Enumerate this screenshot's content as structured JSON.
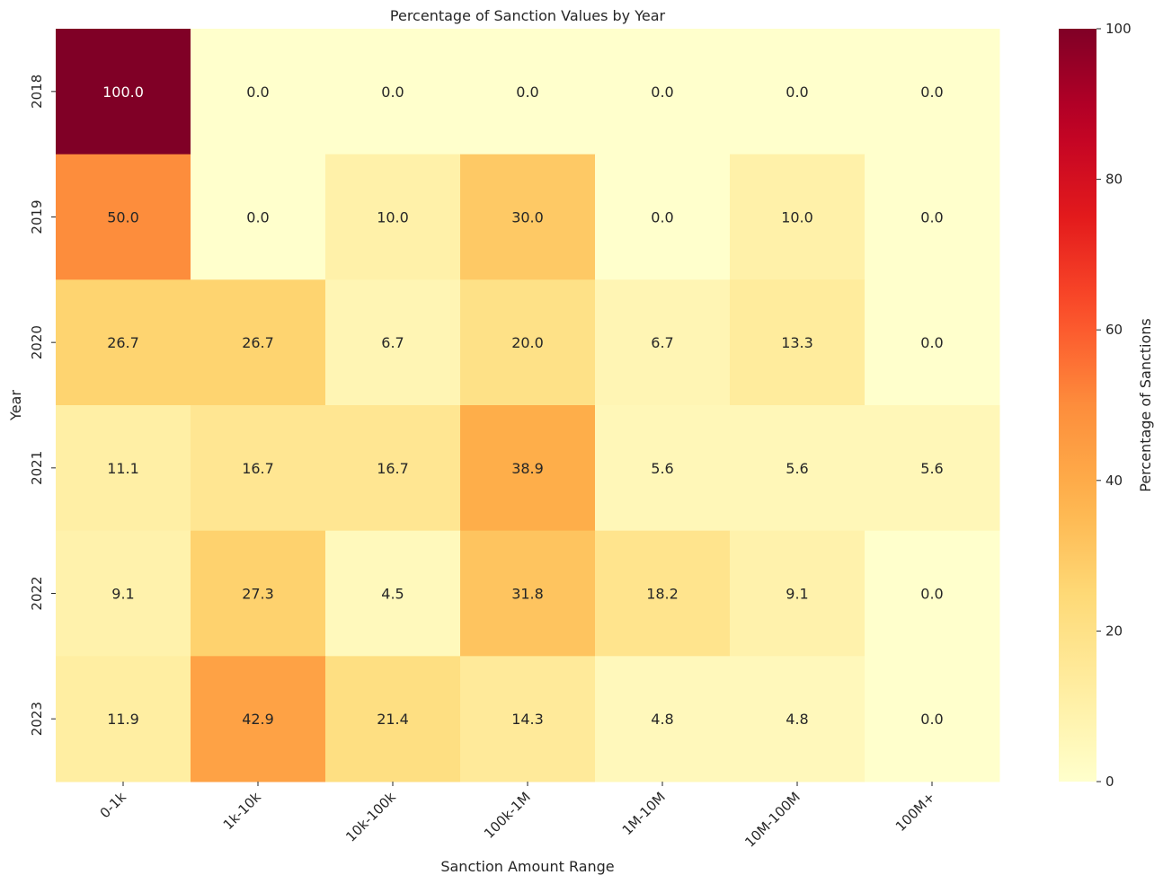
{
  "chart_data": {
    "type": "heatmap",
    "title": "Percentage of Sanction Values by Year",
    "xlabel": "Sanction Amount Range",
    "ylabel": "Year",
    "x_categories": [
      "0-1k",
      "1k-10k",
      "10k-100k",
      "100k-1M",
      "1M-10M",
      "10M-100M",
      "100M+"
    ],
    "y_categories": [
      "2018",
      "2019",
      "2020",
      "2021",
      "2022",
      "2023"
    ],
    "values": [
      [
        100.0,
        0.0,
        0.0,
        0.0,
        0.0,
        0.0,
        0.0
      ],
      [
        50.0,
        0.0,
        10.0,
        30.0,
        0.0,
        10.0,
        0.0
      ],
      [
        26.7,
        26.7,
        6.7,
        20.0,
        6.7,
        13.3,
        0.0
      ],
      [
        11.1,
        16.7,
        16.7,
        38.9,
        5.6,
        5.6,
        5.6
      ],
      [
        9.1,
        27.3,
        4.5,
        31.8,
        18.2,
        9.1,
        0.0
      ],
      [
        11.9,
        42.9,
        21.4,
        14.3,
        4.8,
        4.8,
        0.0
      ]
    ],
    "value_labels": [
      [
        "100.0",
        "0.0",
        "0.0",
        "0.0",
        "0.0",
        "0.0",
        "0.0"
      ],
      [
        "50.0",
        "0.0",
        "10.0",
        "30.0",
        "0.0",
        "10.0",
        "0.0"
      ],
      [
        "26.7",
        "26.7",
        "6.7",
        "20.0",
        "6.7",
        "13.3",
        "0.0"
      ],
      [
        "11.1",
        "16.7",
        "16.7",
        "38.9",
        "5.6",
        "5.6",
        "5.6"
      ],
      [
        "9.1",
        "27.3",
        "4.5",
        "31.8",
        "18.2",
        "9.1",
        "0.0"
      ],
      [
        "11.9",
        "42.9",
        "21.4",
        "14.3",
        "4.8",
        "4.8",
        "0.0"
      ]
    ],
    "colorbar": {
      "label": "Percentage of Sanctions",
      "range": [
        0,
        100
      ],
      "ticks": [
        "0",
        "20",
        "40",
        "60",
        "80",
        "100"
      ],
      "colormap": "YlOrRd"
    },
    "grid": false
  }
}
